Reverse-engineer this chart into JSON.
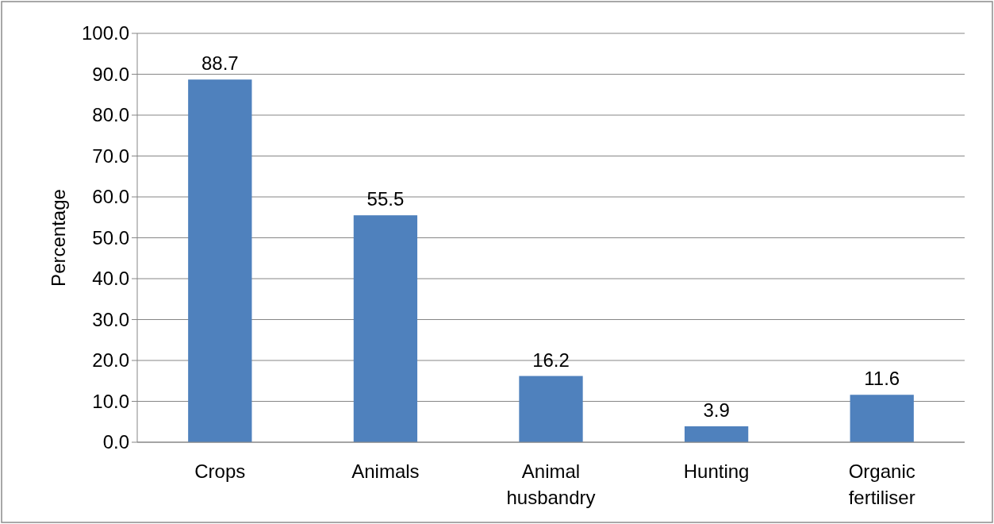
{
  "chart_data": {
    "type": "bar",
    "ylabel": "Percentage",
    "categories": [
      "Crops",
      "Animals",
      "Animal husbandry",
      "Hunting",
      "Organic fertiliser"
    ],
    "values": [
      88.7,
      55.5,
      16.2,
      3.9,
      11.6
    ],
    "color": "#4f81bd",
    "data_labels": true,
    "ylim": [
      0,
      100
    ],
    "yticks": [
      {
        "value": 0,
        "label": "0.0"
      },
      {
        "value": 10,
        "label": "10.0"
      },
      {
        "value": 20,
        "label": "20.0"
      },
      {
        "value": 30,
        "label": "30.0"
      },
      {
        "value": 40,
        "label": "40.0"
      },
      {
        "value": 50,
        "label": "50.0"
      },
      {
        "value": 60,
        "label": "60.0"
      },
      {
        "value": 70,
        "label": "70.0"
      },
      {
        "value": 80,
        "label": "80.0"
      },
      {
        "value": 90,
        "label": "90.0"
      },
      {
        "value": 100,
        "label": "100.0"
      }
    ],
    "grid": "y"
  }
}
